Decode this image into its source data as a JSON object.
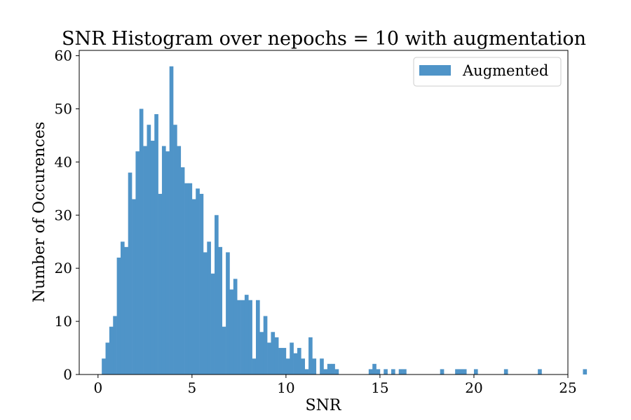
{
  "chart_data": {
    "type": "bar",
    "title": "SNR Histogram over nepochs = 10 with augmentation",
    "xlabel": "SNR",
    "ylabel": "Number of Occurences",
    "xlim": [
      -1,
      25
    ],
    "ylim": [
      0,
      61
    ],
    "xticks": [
      0,
      5,
      10,
      15,
      20,
      25
    ],
    "yticks": [
      0,
      10,
      20,
      30,
      40,
      50,
      60
    ],
    "grid": false,
    "legend": {
      "placement": "top-right"
    },
    "bin_start": 0.2,
    "bin_width": 0.2,
    "series": [
      {
        "name": "Augmented",
        "color": "#4f94c8",
        "values": [
          3,
          6,
          9,
          11,
          22,
          25,
          24,
          38,
          33,
          42,
          50,
          43,
          47,
          44,
          49,
          34,
          43,
          42,
          58,
          47,
          43,
          39,
          36,
          36,
          33,
          35,
          34,
          23,
          25,
          19,
          30,
          24,
          9,
          23,
          16,
          18,
          14,
          14,
          15,
          14,
          3,
          14,
          8,
          11,
          6,
          8,
          7,
          5,
          5,
          3,
          6,
          4,
          5,
          3,
          1,
          7,
          3,
          0,
          3,
          1,
          2,
          2,
          1,
          0,
          0,
          0,
          0,
          0,
          0,
          0,
          0,
          1,
          2,
          1,
          0,
          1,
          0,
          1,
          0,
          1,
          1,
          0,
          0,
          0,
          0,
          0,
          0,
          0,
          0,
          0,
          1,
          0,
          0,
          0,
          1,
          1,
          1,
          0,
          0,
          1,
          0,
          0,
          0,
          0,
          0,
          0,
          0,
          1,
          0,
          0,
          0,
          0,
          0,
          0,
          0,
          0,
          1,
          0,
          0,
          0,
          0,
          0,
          0,
          0,
          0,
          0,
          0,
          0,
          1
        ]
      }
    ]
  }
}
